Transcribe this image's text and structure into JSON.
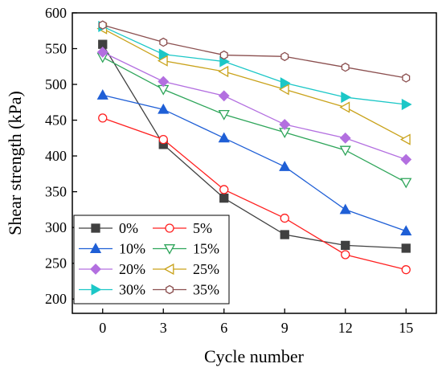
{
  "chart_data": {
    "type": "line",
    "title": "",
    "xlabel": "Cycle number",
    "ylabel": "Shear strength (kPa)",
    "x": [
      0,
      3,
      6,
      9,
      12,
      15
    ],
    "xticks": [
      "0",
      "3",
      "6",
      "9",
      "12",
      "15"
    ],
    "ylim": [
      180,
      600
    ],
    "yticks": [
      "200",
      "250",
      "300",
      "350",
      "400",
      "450",
      "500",
      "550",
      "600"
    ],
    "grid": false,
    "legend_position": "bottom-left",
    "series": [
      {
        "name": "0%",
        "color": "#404040",
        "marker": "square-filled",
        "values": [
          556,
          416,
          341,
          290,
          275,
          271
        ]
      },
      {
        "name": "5%",
        "color": "#ff2020",
        "marker": "circle-open",
        "values": [
          453,
          423,
          353,
          313,
          262,
          241
        ]
      },
      {
        "name": "10%",
        "color": "#1f5fd6",
        "marker": "triangle-up-filled",
        "values": [
          485,
          465,
          425,
          385,
          325,
          295
        ]
      },
      {
        "name": "15%",
        "color": "#2ea55a",
        "marker": "triangle-down-open",
        "values": [
          538,
          493,
          458,
          433,
          408,
          363
        ]
      },
      {
        "name": "20%",
        "color": "#b36fe0",
        "marker": "diamond-filled",
        "values": [
          545,
          504,
          484,
          444,
          425,
          395
        ]
      },
      {
        "name": "25%",
        "color": "#c9a21a",
        "marker": "triangle-left-open",
        "values": [
          578,
          533,
          518,
          493,
          468,
          423
        ]
      },
      {
        "name": "30%",
        "color": "#1cc7c7",
        "marker": "triangle-right-filled",
        "values": [
          581,
          542,
          532,
          502,
          482,
          472
        ]
      },
      {
        "name": "35%",
        "color": "#8b4f4f",
        "marker": "hexagon-open",
        "values": [
          583,
          559,
          541,
          539,
          524,
          509
        ]
      }
    ]
  }
}
